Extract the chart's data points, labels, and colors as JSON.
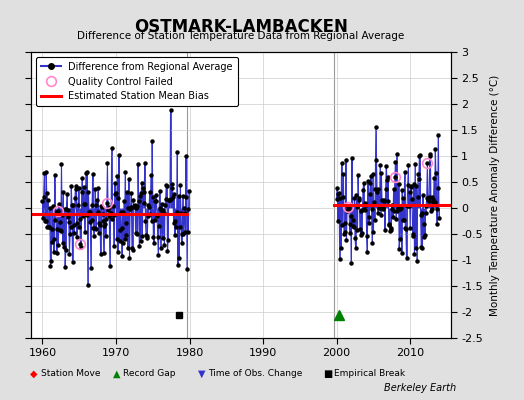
{
  "title": "OSTMARK-LAMBACKEN",
  "subtitle": "Difference of Station Temperature Data from Regional Average",
  "ylabel": "Monthly Temperature Anomaly Difference (°C)",
  "xlabel_note": "Berkeley Earth",
  "xlim": [
    1958.5,
    2015.5
  ],
  "ylim": [
    -2.5,
    3.0
  ],
  "yticks": [
    -2.5,
    -2,
    -1.5,
    -1,
    -0.5,
    0,
    0.5,
    1,
    1.5,
    2,
    2.5,
    3
  ],
  "xticks": [
    1960,
    1970,
    1980,
    1990,
    2000,
    2010
  ],
  "gap_start": 1979.6,
  "gap_end": 1999.6,
  "bias1_start": 1958.5,
  "bias1_end": 1979.6,
  "bias1_value": -0.12,
  "bias2_start": 1999.6,
  "bias2_end": 2015.5,
  "bias2_value": 0.05,
  "empirical_break_x": 1978.5,
  "empirical_break_y": -2.05,
  "record_gap_x": 2000.3,
  "record_gap_y": -2.05,
  "bg_color": "#e0e0e0",
  "plot_bg_color": "#ffffff",
  "line_color": "#3333cc",
  "bias_color": "#ff0000",
  "marker_color": "#000000",
  "qc_color": "#ff88cc",
  "seed": 42,
  "period1_start": 1960,
  "period1_end": 1979,
  "period2_start": 2000,
  "period2_end": 2013
}
